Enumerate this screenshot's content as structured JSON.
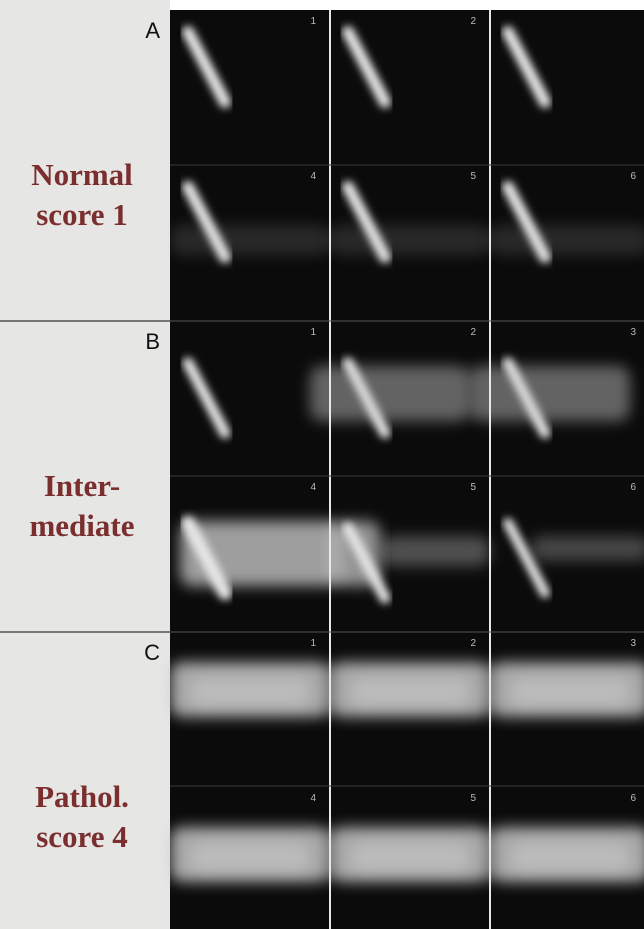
{
  "panels": [
    {
      "letter": "A",
      "lines": [
        "Normal",
        "score 1"
      ],
      "frames": [
        1,
        2,
        4,
        5,
        6
      ]
    },
    {
      "letter": "B",
      "lines": [
        "Inter-",
        "mediate"
      ],
      "frames": [
        1,
        2,
        3,
        4,
        5,
        6
      ]
    },
    {
      "letter": "C",
      "lines": [
        "Pathol.",
        "score 4"
      ],
      "frames": [
        1,
        2,
        3,
        4,
        5,
        6
      ]
    }
  ]
}
